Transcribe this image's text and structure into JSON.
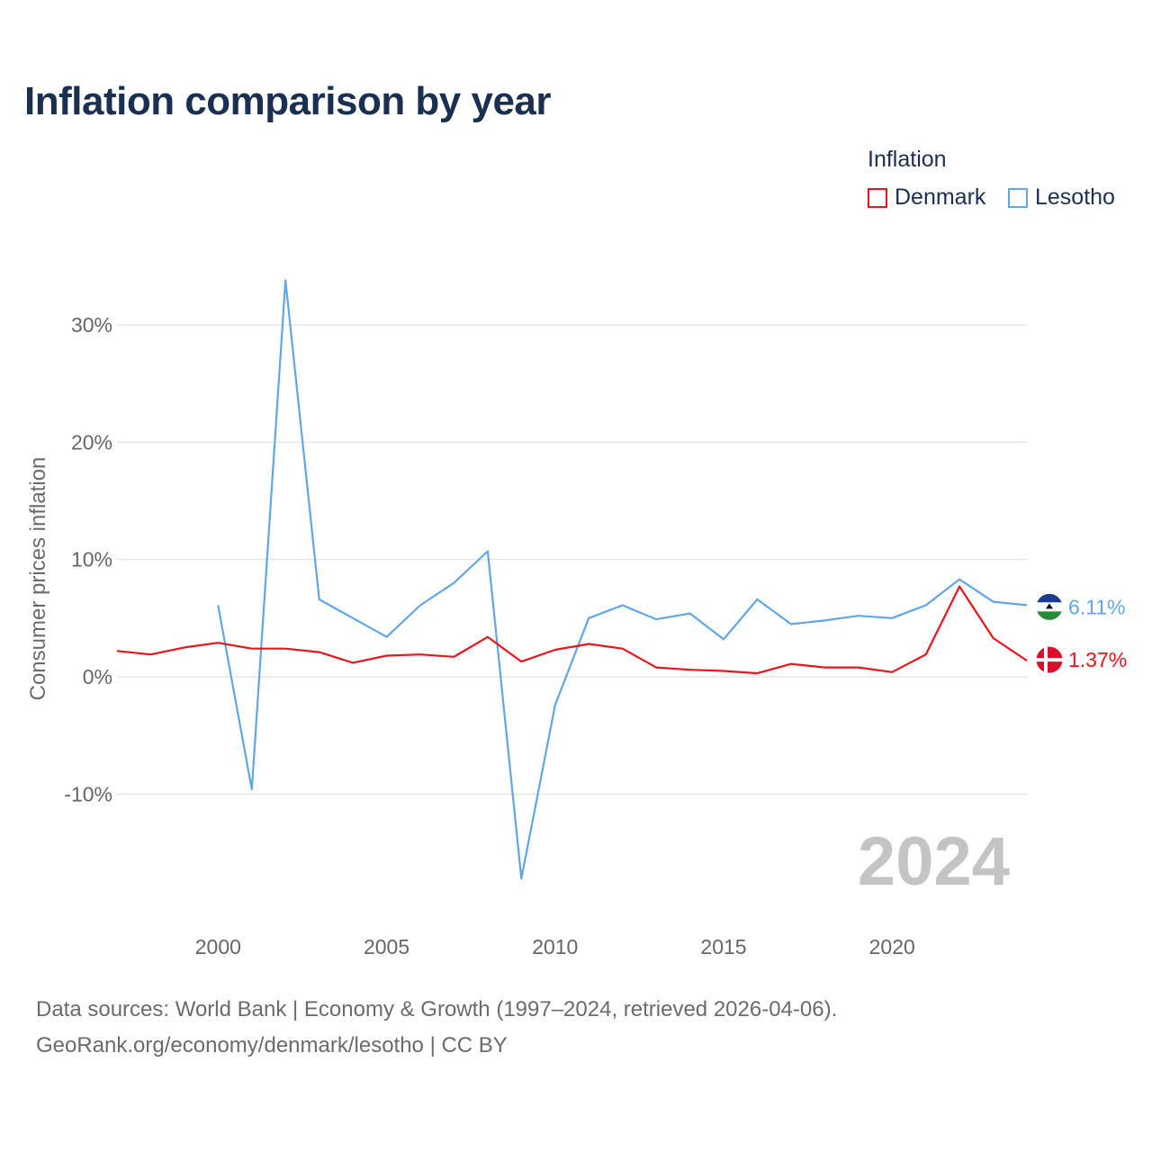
{
  "title": "Inflation comparison by year",
  "legend": {
    "title": "Inflation",
    "items": [
      {
        "label": "Denmark",
        "color": "#e8141e"
      },
      {
        "label": "Lesotho",
        "color": "#62a6e3"
      }
    ]
  },
  "chart_data": {
    "type": "line",
    "title": "Inflation comparison by year",
    "xlabel": "",
    "ylabel": "Consumer prices inflation",
    "x": [
      1997,
      1998,
      1999,
      2000,
      2001,
      2002,
      2003,
      2004,
      2005,
      2006,
      2007,
      2008,
      2009,
      2010,
      2011,
      2012,
      2013,
      2014,
      2015,
      2016,
      2017,
      2018,
      2019,
      2020,
      2021,
      2022,
      2023,
      2024
    ],
    "xlim": [
      1997,
      2024
    ],
    "ylim": [
      -20,
      34
    ],
    "x_ticks": [
      2000,
      2005,
      2010,
      2015,
      2020
    ],
    "y_ticks": [
      30,
      20,
      10,
      0,
      -10
    ],
    "y_tick_labels": [
      "30%",
      "20%",
      "10%",
      "0%",
      "-10%"
    ],
    "x_tick_labels": [
      "2000",
      "2005",
      "2010",
      "2015",
      "2020"
    ],
    "grid": true,
    "legend_position": "top-right",
    "year_watermark": "2024",
    "series": [
      {
        "name": "Denmark",
        "color": "#e8141e",
        "values": [
          2.2,
          1.9,
          2.5,
          2.9,
          2.4,
          2.4,
          2.1,
          1.2,
          1.8,
          1.9,
          1.7,
          3.4,
          1.3,
          2.3,
          2.8,
          2.4,
          0.8,
          0.6,
          0.5,
          0.3,
          1.1,
          0.8,
          0.8,
          0.4,
          1.9,
          7.7,
          3.3,
          1.37
        ],
        "end_label": "1.37%",
        "flag": "denmark-flag"
      },
      {
        "name": "Lesotho",
        "color": "#62a6e3",
        "values": [
          null,
          null,
          null,
          6.1,
          -9.6,
          33.8,
          6.6,
          5.0,
          3.4,
          6.1,
          8.0,
          10.7,
          -17.2,
          -2.4,
          5.0,
          6.1,
          4.9,
          5.4,
          3.2,
          6.6,
          4.5,
          4.8,
          5.2,
          5.0,
          6.1,
          8.3,
          6.4,
          6.11
        ],
        "end_label": "6.11%",
        "flag": "lesotho-flag"
      }
    ]
  },
  "footer": {
    "source_line1": "Data sources: World Bank | Economy & Growth (1997–2024, retrieved 2026-04-06).",
    "source_line2": "GeoRank.org/economy/denmark/lesotho | CC BY"
  }
}
